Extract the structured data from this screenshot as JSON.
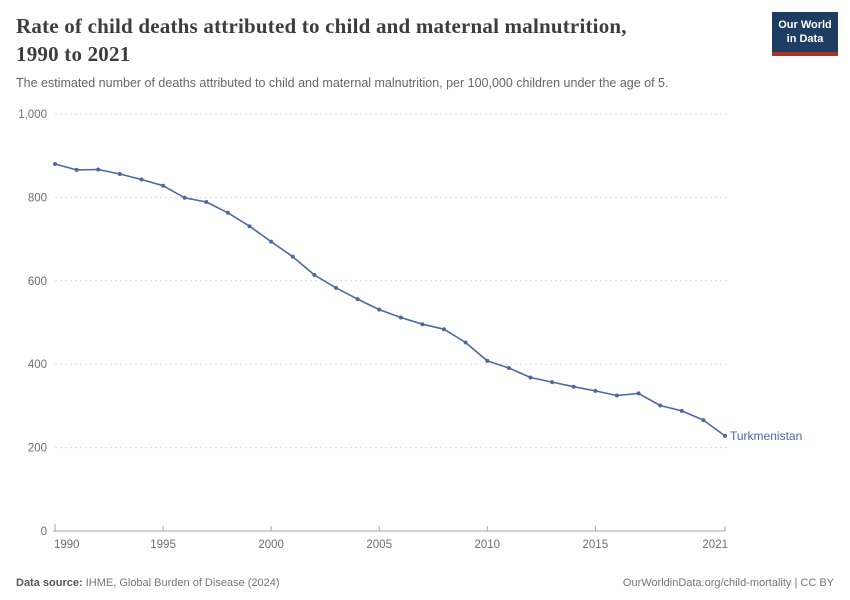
{
  "header": {
    "title_line1": "Rate of child deaths attributed to child and maternal malnutrition,",
    "title_line2": "1990 to 2021",
    "subtitle": "The estimated number of deaths attributed to child and maternal malnutrition, per 100,000 children under the age of 5.",
    "logo": {
      "line1": "Our World",
      "line2": "in Data",
      "bg_color": "#1d3d63",
      "bar_color": "#a8352c"
    }
  },
  "chart_data": {
    "type": "line",
    "title": "Rate of child deaths attributed to child and maternal malnutrition, 1990 to 2021",
    "xlabel": "",
    "ylabel": "",
    "xlim": [
      1990,
      2021
    ],
    "ylim": [
      0,
      1000
    ],
    "grid": "horizontal-dashed",
    "legend_position": "end-of-line-label",
    "x": [
      1990,
      1991,
      1992,
      1993,
      1994,
      1995,
      1996,
      1997,
      1998,
      1999,
      2000,
      2001,
      2002,
      2003,
      2004,
      2005,
      2006,
      2007,
      2008,
      2009,
      2010,
      2011,
      2012,
      2013,
      2014,
      2015,
      2016,
      2017,
      2018,
      2019,
      2020,
      2021
    ],
    "series": [
      {
        "name": "Turkmenistan",
        "color": "#4c6a9d",
        "values": [
          880,
          866,
          867,
          856,
          843,
          828,
          799,
          789,
          763,
          731,
          694,
          658,
          614,
          583,
          556,
          531,
          512,
          496,
          484,
          452,
          408,
          391,
          368,
          357,
          346,
          336,
          325,
          330,
          301,
          288,
          266,
          228
        ]
      }
    ],
    "xticks": {
      "values": [
        1990,
        1995,
        2000,
        2005,
        2010,
        2015,
        2021
      ],
      "labels": [
        "1990",
        "1995",
        "2000",
        "2005",
        "2010",
        "2015",
        "2021"
      ]
    },
    "yticks": {
      "values": [
        0,
        200,
        400,
        600,
        800,
        1000
      ],
      "labels": [
        "0",
        "200",
        "400",
        "600",
        "800",
        "1,000"
      ]
    }
  },
  "footer": {
    "datasource_label": "Data source:",
    "datasource_value": "IHME, Global Burden of Disease (2024)",
    "credit": "OurWorldinData.org/child-mortality | CC BY"
  },
  "colors": {
    "line": "#4c6a9d",
    "grid": "#dcdcdc",
    "axis": "#a5a5a5",
    "tick_text": "#6e6e6e"
  }
}
